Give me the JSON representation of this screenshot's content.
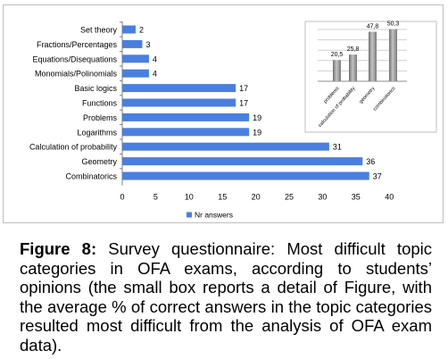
{
  "chart_data": [
    {
      "type": "bar",
      "orientation": "horizontal",
      "categories": [
        "Set theory",
        "Fractions/Percentages",
        "Equations/Disequations",
        "Monomials/Polinomials",
        "Basic logics",
        "Functions",
        "Problems",
        "Logarithms",
        "Calculation of probability",
        "Geometry",
        "Combinatorics"
      ],
      "series": [
        {
          "name": "Nr answers",
          "values": [
            2,
            3,
            4,
            4,
            17,
            17,
            19,
            19,
            31,
            36,
            37
          ]
        }
      ],
      "data_labels": [
        "2",
        "3",
        "4",
        "4",
        "17",
        "17",
        "19",
        "19",
        "31",
        "36",
        "37"
      ],
      "x_ticks": [
        "0",
        "5",
        "10",
        "15",
        "20",
        "25",
        "30",
        "35",
        "40"
      ],
      "xlim": [
        0,
        40
      ],
      "grid": false,
      "legend": "bottom",
      "color": "#4a7fe0"
    },
    {
      "type": "bar",
      "orientation": "vertical",
      "categories": [
        "problems",
        "calculation of probability",
        "geometry",
        "combinatorics"
      ],
      "values": [
        20.5,
        25.8,
        47.8,
        50.3
      ],
      "data_labels": [
        "20,5",
        "25,8",
        "47,8",
        "50,3"
      ],
      "grid": true,
      "legend": "none",
      "color": "#9a9a9a"
    }
  ],
  "caption": {
    "label": "Figure 8:",
    "text": "Survey questionnaire: Most difficult topic categories in OFA exams, according to students’ opinions (the small box reports a detail of Figure, with the average % of correct answers in the topic categories resulted most difficult from the analysis of OFA exam data)."
  }
}
